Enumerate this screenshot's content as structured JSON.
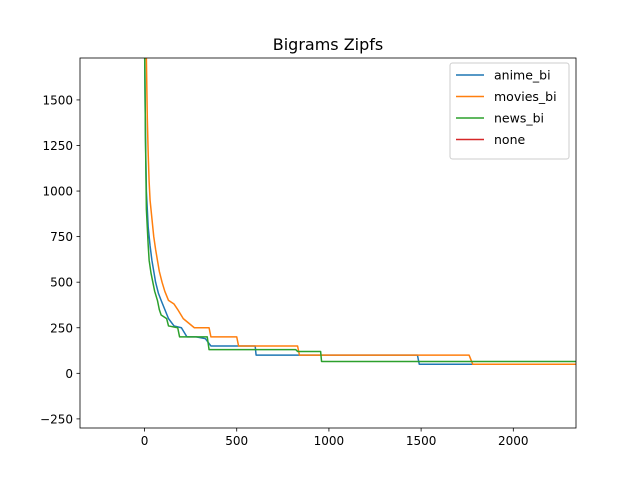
{
  "chart_data": {
    "type": "line",
    "title": "Bigrams Zipfs",
    "xlabel": "",
    "ylabel": "",
    "xlim": [
      -350,
      2340
    ],
    "ylim": [
      -300,
      1730
    ],
    "xticks": [
      0,
      500,
      1000,
      1500,
      2000
    ],
    "yticks": [
      -250,
      0,
      250,
      500,
      750,
      1000,
      1250,
      1500
    ],
    "grid": false,
    "legend_position": "upper right",
    "series": [
      {
        "name": "anime_bi",
        "color": "#1f77b4",
        "points": [
          [
            1,
            1730
          ],
          [
            5,
            1300
          ],
          [
            10,
            1000
          ],
          [
            15,
            900
          ],
          [
            20,
            800
          ],
          [
            30,
            700
          ],
          [
            40,
            620
          ],
          [
            50,
            560
          ],
          [
            60,
            500
          ],
          [
            75,
            440
          ],
          [
            90,
            400
          ],
          [
            110,
            350
          ],
          [
            130,
            300
          ],
          [
            160,
            260
          ],
          [
            200,
            250
          ],
          [
            230,
            200
          ],
          [
            280,
            200
          ],
          [
            330,
            190
          ],
          [
            360,
            150
          ],
          [
            600,
            150
          ],
          [
            605,
            100
          ],
          [
            1480,
            100
          ],
          [
            1490,
            50
          ],
          [
            1780,
            50
          ]
        ]
      },
      {
        "name": "movies_bi",
        "color": "#ff7f0e",
        "points": [
          [
            1,
            1730
          ],
          [
            10,
            1730
          ],
          [
            15,
            1400
          ],
          [
            20,
            1200
          ],
          [
            25,
            1050
          ],
          [
            30,
            950
          ],
          [
            40,
            850
          ],
          [
            50,
            750
          ],
          [
            60,
            680
          ],
          [
            70,
            620
          ],
          [
            80,
            560
          ],
          [
            95,
            500
          ],
          [
            110,
            450
          ],
          [
            130,
            400
          ],
          [
            160,
            380
          ],
          [
            180,
            350
          ],
          [
            210,
            300
          ],
          [
            270,
            250
          ],
          [
            350,
            250
          ],
          [
            360,
            200
          ],
          [
            500,
            200
          ],
          [
            510,
            150
          ],
          [
            830,
            150
          ],
          [
            840,
            100
          ],
          [
            1760,
            100
          ],
          [
            1780,
            50
          ],
          [
            2340,
            50
          ]
        ]
      },
      {
        "name": "news_bi",
        "color": "#2ca02c",
        "points": [
          [
            1,
            1730
          ],
          [
            5,
            1300
          ],
          [
            10,
            900
          ],
          [
            15,
            800
          ],
          [
            20,
            700
          ],
          [
            25,
            620
          ],
          [
            35,
            550
          ],
          [
            45,
            500
          ],
          [
            55,
            450
          ],
          [
            70,
            400
          ],
          [
            80,
            350
          ],
          [
            90,
            320
          ],
          [
            120,
            300
          ],
          [
            130,
            260
          ],
          [
            180,
            250
          ],
          [
            190,
            200
          ],
          [
            340,
            200
          ],
          [
            350,
            130
          ],
          [
            820,
            130
          ],
          [
            830,
            120
          ],
          [
            955,
            120
          ],
          [
            960,
            65
          ],
          [
            2340,
            65
          ]
        ]
      },
      {
        "name": "none",
        "color": "#d62728",
        "points": []
      }
    ]
  }
}
